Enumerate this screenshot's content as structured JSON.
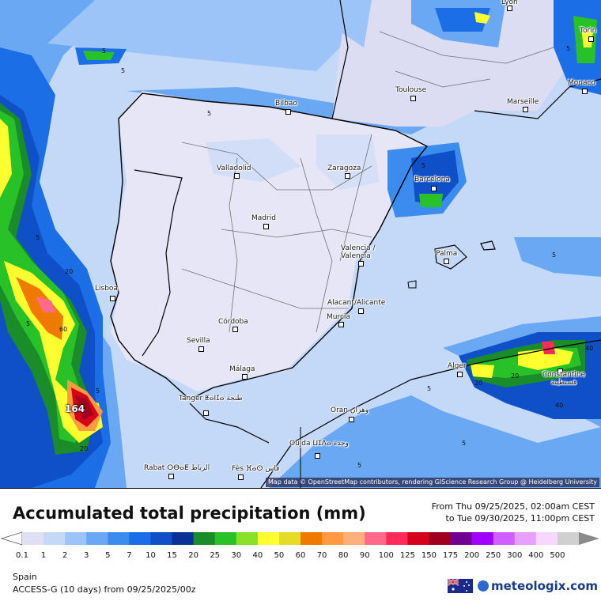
{
  "map": {
    "region": "Spain",
    "attribution": "Map data © OpenStreetMap contributors, rendering GIScience Research Group @ Heidelberg University",
    "max_value": "164",
    "cities": [
      {
        "name": "Lyon"
      },
      {
        "name": "Torin"
      },
      {
        "name": "Monaco"
      },
      {
        "name": "Bilbao"
      },
      {
        "name": "Toulouse"
      },
      {
        "name": "Marseille"
      },
      {
        "name": "Valladolid"
      },
      {
        "name": "Zaragoza"
      },
      {
        "name": "Barcelona"
      },
      {
        "name": "Madrid"
      },
      {
        "name": "Valencia / Valencia"
      },
      {
        "name": "Palma"
      },
      {
        "name": "Lisboa"
      },
      {
        "name": "Alacant/Alicante"
      },
      {
        "name": "Murcia"
      },
      {
        "name": "Córdoba"
      },
      {
        "name": "Sevilla"
      },
      {
        "name": "Alger"
      },
      {
        "name": "Constantine قسنطينة"
      },
      {
        "name": "Málaga"
      },
      {
        "name": "Tanger ⵟⴰⵏⵊⴰ طنجة"
      },
      {
        "name": "Oran وهران"
      },
      {
        "name": "Oujda ⵡⵊⴷⴰ وجدة"
      },
      {
        "name": "Rabat ⵔⴱⴰⵟ الرباط"
      },
      {
        "name": "Fès ⴼⴰⵙ فاس"
      }
    ],
    "contour_labels": [
      "5",
      "5",
      "5",
      "20",
      "5",
      "60",
      "5",
      "20",
      "5",
      "5",
      "5",
      "40",
      "20",
      "20",
      "40",
      "5",
      "5",
      "5",
      "5"
    ]
  },
  "header": {
    "title": "Accumulated total precipitation (mm)",
    "period_from": "From Thu 09/25/2025, 02:00am CEST",
    "period_to": "to Tue 09/30/2025, 11:00pm CEST"
  },
  "legend": {
    "ticks": [
      "0.1",
      "1",
      "2",
      "3",
      "5",
      "7",
      "10",
      "15",
      "20",
      "25",
      "30",
      "40",
      "50",
      "60",
      "70",
      "80",
      "90",
      "100",
      "125",
      "150",
      "175",
      "200",
      "250",
      "300",
      "400",
      "500"
    ],
    "colors": [
      "#e0e0f4",
      "#c4d8f8",
      "#9cc4f8",
      "#6aa8f4",
      "#3c8cf0",
      "#1c6ee6",
      "#0f50c8",
      "#0a3296",
      "#1a8c2a",
      "#28c228",
      "#8ae028",
      "#ffff30",
      "#e6dc28",
      "#f07a00",
      "#ff9a40",
      "#ffb07a",
      "#ff6a8a",
      "#ff2a5a",
      "#d6001a",
      "#a0001e",
      "#700090",
      "#a000ff",
      "#d060ff",
      "#e8a0ff",
      "#f6d8ff",
      "#d0d0d0"
    ]
  },
  "footer": {
    "region": "Spain",
    "model": "ACCESS-G (10 days) from 09/25/2025/00z",
    "brand": "meteologix.com"
  }
}
